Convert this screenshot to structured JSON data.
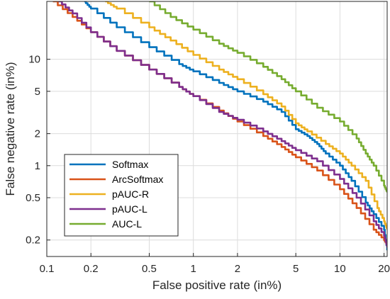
{
  "chart_data": {
    "type": "line",
    "xlabel": "False positive rate (in%)",
    "ylabel": "False negative rate (in%)",
    "xscale": "log",
    "yscale": "log",
    "xlim": [
      0.1,
      21
    ],
    "ylim": [
      0.14,
      35
    ],
    "grid": true,
    "legend_position": "bottom-left",
    "x_ticks": [
      0.1,
      0.2,
      0.5,
      1,
      2,
      5,
      10,
      20
    ],
    "x_tick_labels": [
      "0.1",
      "0.2",
      "0.5",
      "1",
      "2",
      "5",
      "10",
      "20"
    ],
    "y_ticks": [
      0.2,
      0.5,
      1,
      2,
      5,
      10
    ],
    "y_tick_labels": [
      "0.2",
      "0.5",
      "1",
      "2",
      "5",
      "10"
    ],
    "series": [
      {
        "name": "Softmax",
        "color": "#0072BD",
        "points": [
          [
            0.18,
            35
          ],
          [
            0.2,
            30
          ],
          [
            0.3,
            20
          ],
          [
            0.5,
            13
          ],
          [
            0.8,
            9
          ],
          [
            1,
            7.7
          ],
          [
            1.5,
            6
          ],
          [
            2,
            5
          ],
          [
            3,
            4
          ],
          [
            4,
            3.2
          ],
          [
            5,
            2.2
          ],
          [
            6,
            1.9
          ],
          [
            7,
            1.6
          ],
          [
            8,
            1.3
          ],
          [
            10,
            1.0
          ],
          [
            12,
            0.72
          ],
          [
            15,
            0.45
          ],
          [
            17,
            0.35
          ],
          [
            20,
            0.25
          ],
          [
            21,
            0.16
          ]
        ]
      },
      {
        "name": "ArcSoftmax",
        "color": "#D95319",
        "points": [
          [
            0.11,
            35
          ],
          [
            0.15,
            25
          ],
          [
            0.2,
            18
          ],
          [
            0.3,
            12
          ],
          [
            0.5,
            8
          ],
          [
            0.8,
            5.5
          ],
          [
            1,
            4.5
          ],
          [
            1.5,
            3.3
          ],
          [
            2,
            2.6
          ],
          [
            3,
            1.9
          ],
          [
            4,
            1.5
          ],
          [
            5,
            1.2
          ],
          [
            7,
            0.9
          ],
          [
            10,
            0.6
          ],
          [
            13,
            0.4
          ],
          [
            17,
            0.25
          ],
          [
            20,
            0.2
          ],
          [
            21,
            0.18
          ]
        ]
      },
      {
        "name": "pAUC-R",
        "color": "#EDB120",
        "points": [
          [
            0.25,
            35
          ],
          [
            0.3,
            30
          ],
          [
            0.5,
            20
          ],
          [
            0.7,
            15
          ],
          [
            1,
            11
          ],
          [
            1.5,
            8
          ],
          [
            2,
            6.5
          ],
          [
            3,
            4.7
          ],
          [
            4,
            3.6
          ],
          [
            5,
            2.5
          ],
          [
            6,
            2.1
          ],
          [
            8,
            1.6
          ],
          [
            10,
            1.3
          ],
          [
            12,
            1.0
          ],
          [
            15,
            0.72
          ],
          [
            18,
            0.4
          ],
          [
            20,
            0.3
          ],
          [
            21,
            0.25
          ]
        ]
      },
      {
        "name": "pAUC-L",
        "color": "#7E2F8E",
        "points": [
          [
            0.12,
            35
          ],
          [
            0.15,
            27
          ],
          [
            0.2,
            18
          ],
          [
            0.3,
            12
          ],
          [
            0.5,
            8
          ],
          [
            0.8,
            5.5
          ],
          [
            1,
            4.5
          ],
          [
            1.5,
            3.2
          ],
          [
            2,
            2.7
          ],
          [
            3,
            2.1
          ],
          [
            4,
            1.7
          ],
          [
            5,
            1.4
          ],
          [
            7,
            1.1
          ],
          [
            10,
            0.75
          ],
          [
            13,
            0.5
          ],
          [
            17,
            0.3
          ],
          [
            20,
            0.22
          ],
          [
            21,
            0.17
          ]
        ]
      },
      {
        "name": "AUC-L",
        "color": "#77AC30",
        "points": [
          [
            0.5,
            35
          ],
          [
            0.7,
            25
          ],
          [
            1,
            19
          ],
          [
            1.5,
            14
          ],
          [
            2,
            11.5
          ],
          [
            3,
            8.5
          ],
          [
            4,
            6.5
          ],
          [
            5,
            5
          ],
          [
            7,
            3.5
          ],
          [
            10,
            2.6
          ],
          [
            13,
            1.8
          ],
          [
            15,
            1.3
          ],
          [
            17,
            1.0
          ],
          [
            20,
            0.65
          ],
          [
            21,
            0.56
          ]
        ]
      }
    ]
  }
}
